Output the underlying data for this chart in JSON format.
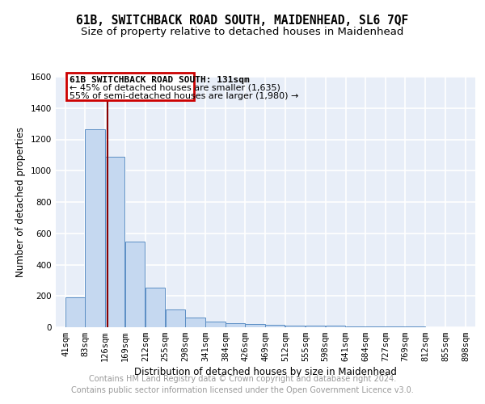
{
  "title": "61B, SWITCHBACK ROAD SOUTH, MAIDENHEAD, SL6 7QF",
  "subtitle": "Size of property relative to detached houses in Maidenhead",
  "xlabel": "Distribution of detached houses by size in Maidenhead",
  "ylabel": "Number of detached properties",
  "footer_line1": "Contains HM Land Registry data © Crown copyright and database right 2024.",
  "footer_line2": "Contains public sector information licensed under the Open Government Licence v3.0.",
  "property_size": 131,
  "property_label": "61B SWITCHBACK ROAD SOUTH: 131sqm",
  "annotation_line1": "← 45% of detached houses are smaller (1,635)",
  "annotation_line2": "55% of semi-detached houses are larger (1,980) →",
  "bin_edges": [
    41,
    83,
    126,
    169,
    212,
    255,
    298,
    341,
    384,
    426,
    469,
    512,
    555,
    598,
    641,
    684,
    727,
    769,
    812,
    855,
    898
  ],
  "bar_values": [
    190,
    1265,
    1090,
    545,
    255,
    115,
    60,
    35,
    25,
    20,
    15,
    12,
    10,
    8,
    6,
    5,
    4,
    3,
    2,
    2
  ],
  "bar_color": "#c5d8f0",
  "bar_edge_color": "#5b8ec4",
  "vline_color": "#8b0000",
  "annotation_box_edge": "#cc0000",
  "ylim": [
    0,
    1600
  ],
  "yticks": [
    0,
    200,
    400,
    600,
    800,
    1000,
    1200,
    1400,
    1600
  ],
  "background_color": "#e8eef8",
  "grid_color": "#ffffff",
  "title_fontsize": 10.5,
  "subtitle_fontsize": 9.5,
  "axis_fontsize": 8.5,
  "tick_fontsize": 7.5,
  "annotation_fontsize": 8,
  "footer_fontsize": 7
}
